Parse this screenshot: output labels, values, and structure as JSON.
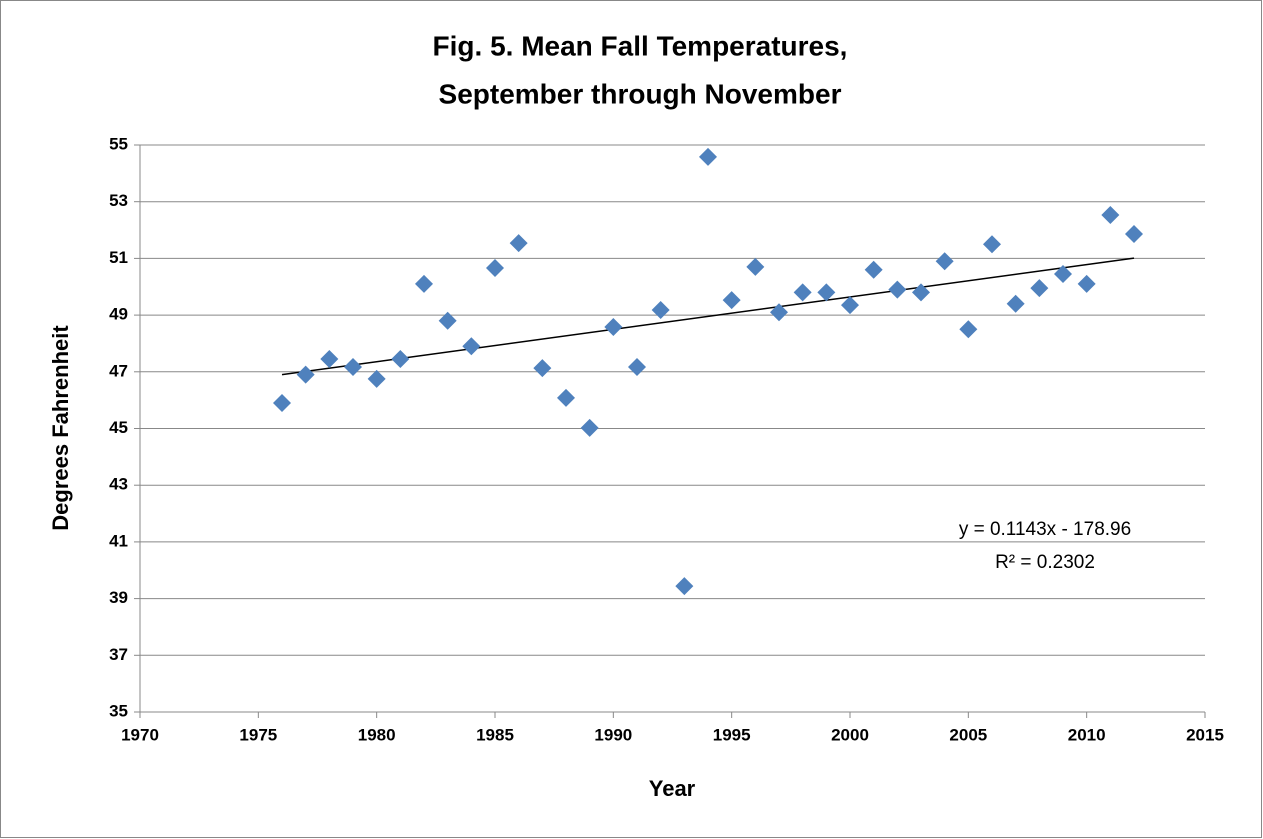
{
  "chart_data": {
    "type": "scatter",
    "title": [
      "Fig. 5. Mean Fall Temperatures,",
      "September through November"
    ],
    "x_label": "Year",
    "y_label": "Degrees Fahrenheit",
    "x": [
      1976,
      1977,
      1978,
      1979,
      1980,
      1981,
      1982,
      1983,
      1984,
      1985,
      1986,
      1987,
      1988,
      1989,
      1990,
      1991,
      1992,
      1993,
      1994,
      1995,
      1996,
      1997,
      1998,
      1999,
      2000,
      2001,
      2002,
      2003,
      2004,
      2005,
      2006,
      2007,
      2008,
      2009,
      2010,
      2011,
      2012
    ],
    "values": [
      45.9,
      46.9,
      47.45,
      47.17,
      46.75,
      47.45,
      50.1,
      48.8,
      47.9,
      50.66,
      51.54,
      47.13,
      46.08,
      45.02,
      48.58,
      47.17,
      49.18,
      39.44,
      54.58,
      49.53,
      50.7,
      49.1,
      49.8,
      49.8,
      49.35,
      50.6,
      49.9,
      49.8,
      50.9,
      48.5,
      51.5,
      49.4,
      49.95,
      50.45,
      50.1,
      52.53,
      51.86
    ],
    "color": "#4f81bd",
    "trendline": {
      "x": [
        1976,
        2012
      ],
      "values": [
        46.9,
        51.01
      ],
      "color": "#000000",
      "equation": "y = 0.1143x - 178.96",
      "r_squared": "R² = 0.2302"
    },
    "xlim": [
      1970,
      2015
    ],
    "xticks": [
      1970,
      1975,
      1980,
      1985,
      1990,
      1995,
      2000,
      2005,
      2010,
      2015
    ],
    "ylim": [
      35,
      55
    ],
    "yticks": [
      35,
      37,
      39,
      41,
      43,
      45,
      47,
      49,
      51,
      53,
      55
    ],
    "grid": true
  }
}
